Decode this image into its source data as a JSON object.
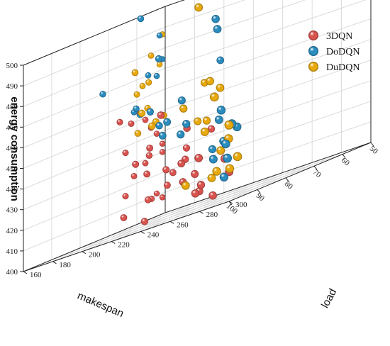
{
  "chart_data": {
    "type": "scatter",
    "xlabel": "makespan",
    "ylabel": "load",
    "zlabel": "energy consumption",
    "xlim": [
      50,
      100
    ],
    "ylim": [
      160,
      300
    ],
    "zlim": [
      400,
      500
    ],
    "x_ticks": [
      50,
      60,
      70,
      80,
      90,
      100
    ],
    "y_ticks": [
      160,
      180,
      200,
      220,
      240,
      260,
      280,
      300
    ],
    "z_ticks": [
      400,
      410,
      420,
      430,
      440,
      450,
      460,
      470,
      480,
      490,
      500
    ],
    "grid": true,
    "legend_position": "top-right",
    "series": [
      {
        "name": "3DQN",
        "color": "#d9534f",
        "points": [
          [
            51,
            160,
            434
          ],
          [
            51,
            160,
            430
          ],
          [
            51,
            160,
            408
          ],
          [
            53,
            160,
            440
          ],
          [
            53,
            160,
            411
          ],
          [
            55,
            160,
            444
          ],
          [
            57,
            160,
            449
          ],
          [
            57,
            160,
            428
          ],
          [
            59,
            160,
            453
          ],
          [
            61,
            160,
            424
          ],
          [
            62,
            160,
            450
          ],
          [
            64,
            160,
            416
          ],
          [
            64,
            160,
            437
          ],
          [
            66,
            160,
            453
          ],
          [
            60,
            170,
            410
          ],
          [
            66,
            180,
            432
          ],
          [
            69,
            185,
            411
          ],
          [
            72,
            190,
            424
          ],
          [
            71,
            190,
            436
          ],
          [
            68,
            200,
            420
          ],
          [
            70,
            200,
            415
          ],
          [
            71,
            215,
            430
          ],
          [
            74,
            220,
            425
          ],
          [
            76,
            225,
            440
          ],
          [
            78,
            225,
            424
          ],
          [
            80,
            230,
            415
          ],
          [
            81,
            240,
            417
          ],
          [
            82,
            245,
            408
          ],
          [
            84,
            250,
            411
          ],
          [
            85,
            260,
            404
          ],
          [
            86,
            270,
            420
          ],
          [
            87,
            275,
            413
          ],
          [
            80,
            215,
            451
          ],
          [
            73,
            205,
            423
          ],
          [
            75,
            180,
            407
          ],
          [
            90,
            260,
            425
          ],
          [
            78,
            200,
            402
          ],
          [
            76,
            190,
            431
          ],
          [
            70,
            230,
            435
          ],
          [
            86,
            250,
            408
          ]
        ]
      },
      {
        "name": "DoDQN",
        "color": "#2b8cbe",
        "points": [
          [
            51,
            160,
            475
          ],
          [
            52,
            160,
            487
          ],
          [
            53,
            160,
            468
          ],
          [
            56,
            160,
            470
          ],
          [
            61,
            160,
            455
          ],
          [
            64,
            170,
            453
          ],
          [
            72,
            160,
            470
          ],
          [
            68,
            175,
            457
          ],
          [
            73,
            200,
            478
          ],
          [
            69,
            180,
            500
          ],
          [
            72,
            240,
            467
          ],
          [
            84,
            260,
            489
          ],
          [
            86,
            265,
            484
          ],
          [
            76,
            200,
            454
          ],
          [
            78,
            210,
            446
          ],
          [
            83,
            225,
            447
          ],
          [
            82,
            220,
            441
          ],
          [
            86,
            240,
            439
          ],
          [
            83,
            235,
            455
          ],
          [
            84,
            240,
            443
          ],
          [
            80,
            250,
            426
          ],
          [
            88,
            270,
            440
          ],
          [
            89,
            275,
            429
          ],
          [
            95,
            285,
            445
          ],
          [
            92,
            290,
            434
          ],
          [
            98,
            295,
            421
          ],
          [
            99,
            300,
            437
          ],
          [
            96,
            290,
            428
          ],
          [
            90,
            270,
            422
          ],
          [
            94,
            285,
            412
          ]
        ]
      },
      {
        "name": "DuDQN",
        "color": "#e8a90c",
        "points": [
          [
            51,
            160,
            487
          ],
          [
            52,
            160,
            473
          ],
          [
            55,
            160,
            479
          ],
          [
            58,
            160,
            466
          ],
          [
            60,
            160,
            463
          ],
          [
            61,
            170,
            467
          ],
          [
            64,
            175,
            455
          ],
          [
            71,
            180,
            475
          ],
          [
            66,
            190,
            449
          ],
          [
            70,
            180,
            445
          ],
          [
            74,
            200,
            448
          ],
          [
            78,
            205,
            447
          ],
          [
            79,
            200,
            455
          ],
          [
            80,
            240,
            442
          ],
          [
            82,
            250,
            441
          ],
          [
            85,
            265,
            455
          ],
          [
            90,
            260,
            498
          ],
          [
            100,
            290,
            453
          ],
          [
            90,
            275,
            425
          ],
          [
            93,
            270,
            437
          ],
          [
            95,
            290,
            430
          ],
          [
            92,
            285,
            415
          ],
          [
            88,
            265,
            413
          ],
          [
            85,
            240,
            451
          ],
          [
            100,
            300,
            437
          ],
          [
            94,
            280,
            416
          ],
          [
            97,
            300,
            420
          ],
          [
            86,
            260,
            460
          ],
          [
            75,
            235,
            459
          ],
          [
            92,
            255,
            414
          ]
        ]
      }
    ]
  }
}
